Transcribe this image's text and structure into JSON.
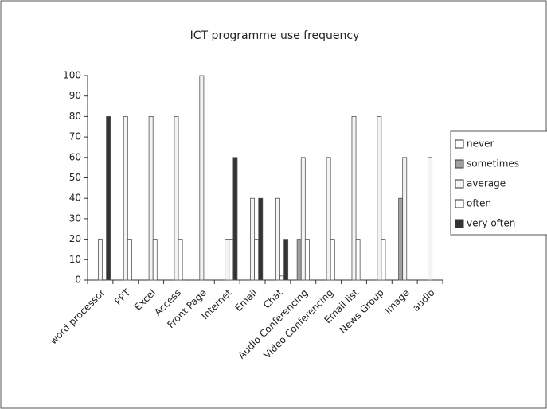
{
  "chart_data": {
    "type": "bar",
    "title": "ICT programme use frequency",
    "categories": [
      "word processor",
      "PPT",
      "Excel",
      "Access",
      "Front Page",
      "Internet",
      "Email",
      "Chat",
      "Audio Conferencing",
      "Video Conferencing",
      "Email list",
      "News Group",
      "Image",
      "audio"
    ],
    "series": [
      {
        "name": "never",
        "color": "#ffffff",
        "values": [
          0,
          0,
          0,
          0,
          0,
          0,
          0,
          0,
          0,
          0,
          0,
          0,
          0,
          0
        ]
      },
      {
        "name": "sometimes",
        "color": "#a0a0a0",
        "values": [
          0,
          0,
          0,
          0,
          0,
          0,
          0,
          0,
          20,
          0,
          0,
          0,
          40,
          0
        ]
      },
      {
        "name": "average",
        "color": "#f4f4f4",
        "values": [
          20,
          80,
          80,
          80,
          100,
          20,
          40,
          40,
          60,
          60,
          80,
          80,
          60,
          60
        ]
      },
      {
        "name": "often",
        "color": "#ffffff",
        "values": [
          0,
          20,
          20,
          20,
          0,
          20,
          20,
          2,
          20,
          20,
          20,
          20,
          0,
          0
        ]
      },
      {
        "name": "very often",
        "color": "#333333",
        "values": [
          80,
          0,
          0,
          0,
          0,
          60,
          40,
          20,
          0,
          0,
          0,
          0,
          0,
          0
        ]
      }
    ],
    "ylim": [
      0,
      100
    ],
    "yticks": [
      0,
      10,
      20,
      30,
      40,
      50,
      60,
      70,
      80,
      90,
      100
    ],
    "legend": "right"
  }
}
